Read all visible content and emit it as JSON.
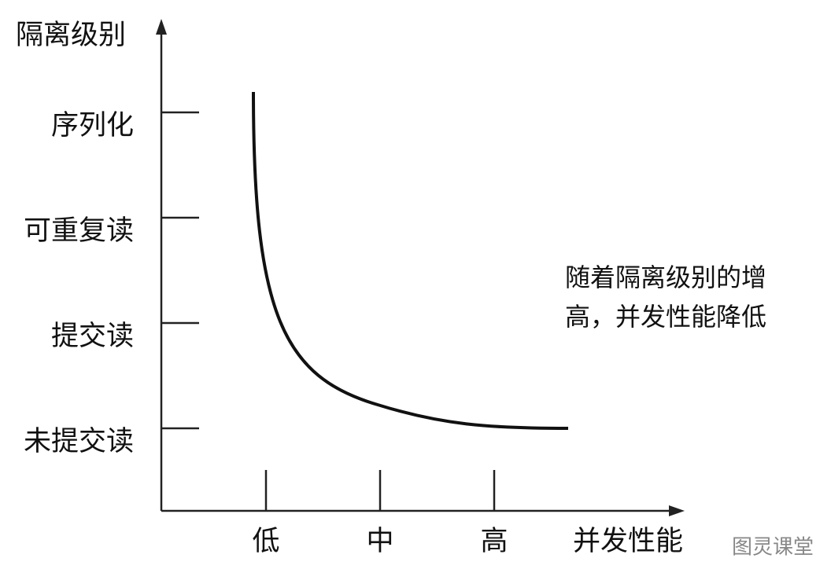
{
  "axes": {
    "y_title": "隔离级别",
    "x_title": "并发性能"
  },
  "y_levels": [
    "序列化",
    "可重复读",
    "提交读",
    "未提交读"
  ],
  "x_levels": [
    "低",
    "中",
    "高"
  ],
  "annotation": [
    "随着隔离级别的增",
    "高，并发性能降低"
  ],
  "watermark": "图灵课堂"
}
